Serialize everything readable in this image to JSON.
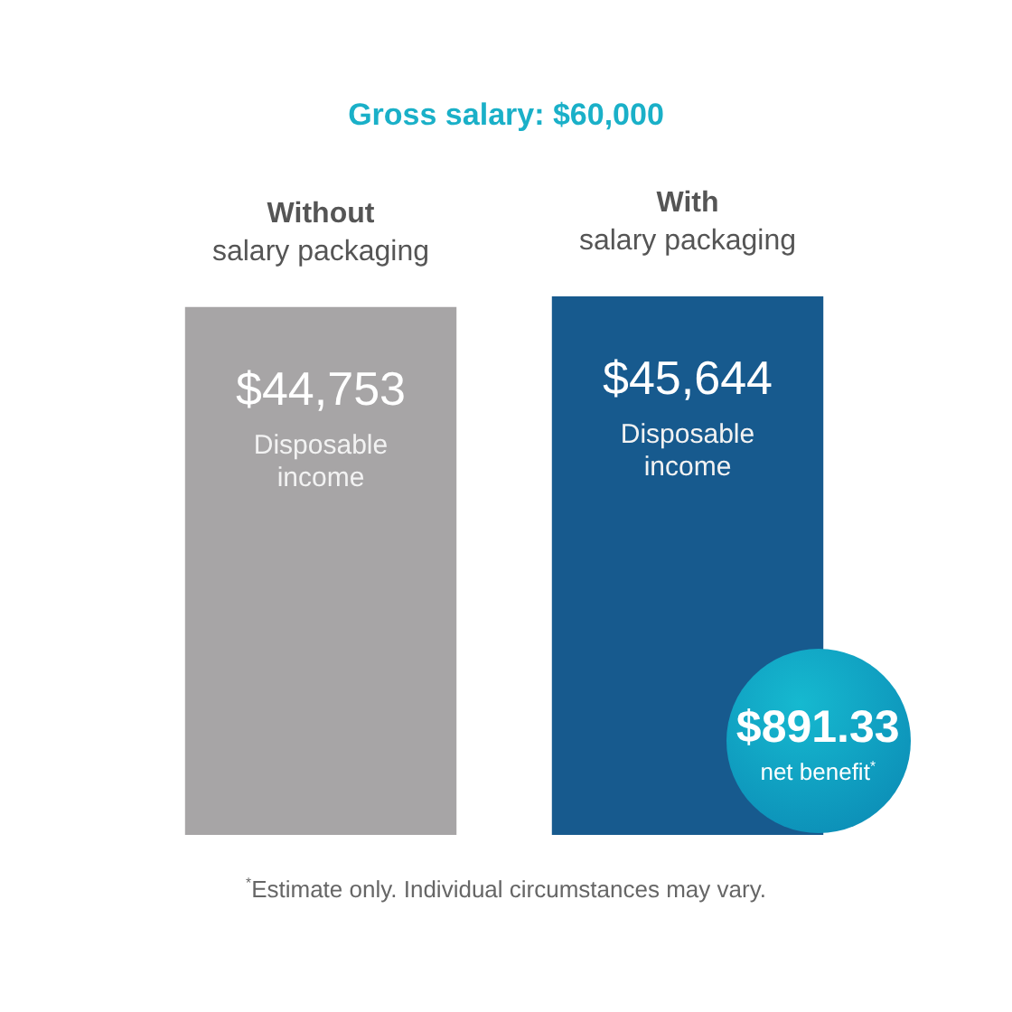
{
  "chart_data": {
    "type": "bar",
    "title": "Gross salary: $60,000",
    "categories": [
      "Without\nsalary packaging",
      "With\nsalary packaging"
    ],
    "values": [
      44753,
      45644
    ],
    "colors": [
      "#a7a5a6",
      "#175a8e"
    ],
    "value_labels": [
      "$44,753\nDisposable income",
      "$45,644\nDisposable income"
    ],
    "annotations": [
      "$891.33\nnet benefit$^{*}$",
      "$^{*}$Estimate only. Individual circumstances may vary."
    ]
  }
}
